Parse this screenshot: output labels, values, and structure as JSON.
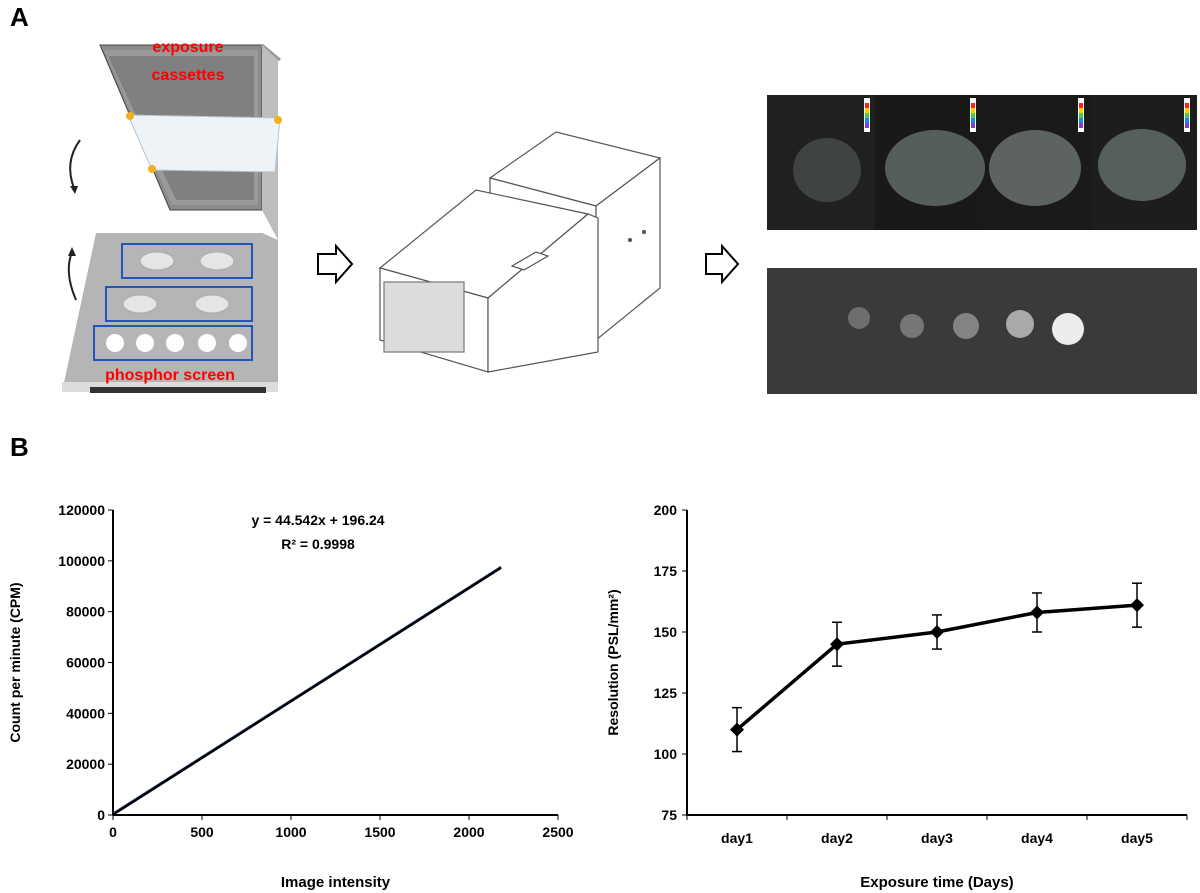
{
  "panels": {
    "a_label": "A",
    "b_label": "B"
  },
  "cassette": {
    "top_label_1": "exposure",
    "top_label_2": "cassettes",
    "bottom_label": "phosphor screen",
    "label_color": "#ff0000",
    "frame_blue": "#2255bb"
  },
  "colorbar_colors": [
    "#ffffff",
    "#ff2020",
    "#ffd000",
    "#40d040",
    "#2080ff",
    "#8040c0",
    "#202020"
  ],
  "chart_data": [
    {
      "type": "line",
      "xlabel": "Image intensity",
      "ylabel": "Count per minute (CPM)",
      "xlim": [
        0,
        2500
      ],
      "ylim": [
        0,
        120000
      ],
      "x_ticks": [
        0,
        500,
        1000,
        1500,
        2000,
        2500
      ],
      "y_ticks": [
        0,
        20000,
        40000,
        60000,
        80000,
        100000,
        120000
      ],
      "series": [
        {
          "x": [
            0,
            2180
          ],
          "y": [
            196.24,
            97297.8
          ],
          "color": "#000000"
        }
      ],
      "annotations": [
        "y = 44.542x + 196.24",
        "R² = 0.9998"
      ],
      "grid": false
    },
    {
      "type": "line",
      "xlabel": "Exposure time (Days)",
      "ylabel": "Resolution (PSL/mm²)",
      "ylim": [
        75,
        200
      ],
      "y_ticks": [
        75,
        100,
        125,
        150,
        175,
        200
      ],
      "categories": [
        "day1",
        "day2",
        "day3",
        "day4",
        "day5"
      ],
      "series": [
        {
          "values": [
            110,
            145,
            150,
            158,
            161
          ],
          "errors": [
            9,
            9,
            7,
            8,
            9
          ],
          "color": "#000000"
        }
      ],
      "grid": false
    }
  ]
}
